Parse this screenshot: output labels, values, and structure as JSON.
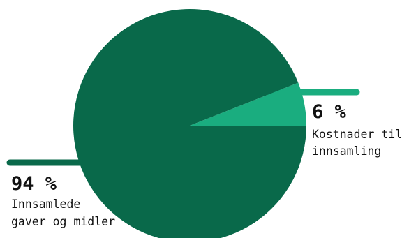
{
  "chart_data": {
    "type": "pie",
    "title": "",
    "slices": [
      {
        "value": 94,
        "value_label": "94 %",
        "label_lines": [
          "Innsamlede",
          "gaver og midler"
        ],
        "color": "#09694a"
      },
      {
        "value": 6,
        "value_label": "6 %",
        "label_lines": [
          "Kostnader til",
          "innsamling"
        ],
        "color": "#1aad7f"
      }
    ],
    "start_angle_deg": 0,
    "direction": "counterclockwise",
    "leader_color": "#09694a"
  }
}
